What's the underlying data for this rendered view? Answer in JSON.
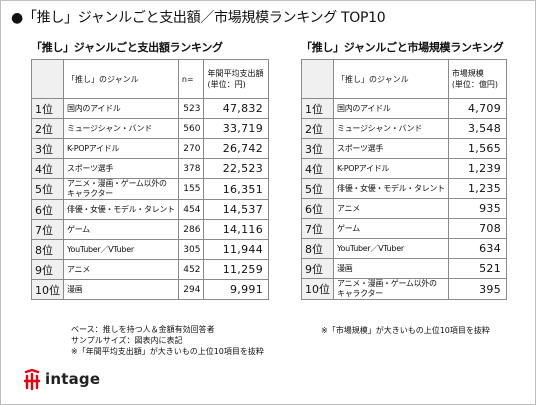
{
  "title": "●「推し」ジャンルごと支出額／市場規模ランキング TOP10",
  "left": {
    "subtitle": "「推し」ジャンルごと支出額ランキング",
    "col_genre": "「推し」のジャンル",
    "col_n": "n=",
    "col_value": "年間平均支出額\n(単位：円)",
    "rows": [
      {
        "rank": "1位",
        "genre": "国内のアイドル",
        "n": "523",
        "value": "47,832"
      },
      {
        "rank": "2位",
        "genre": "ミュージシャン・バンド",
        "n": "560",
        "value": "33,719"
      },
      {
        "rank": "3位",
        "genre": "K-POPアイドル",
        "n": "270",
        "value": "26,742"
      },
      {
        "rank": "4位",
        "genre": "スポーツ選手",
        "n": "378",
        "value": "22,523"
      },
      {
        "rank": "5位",
        "genre": "アニメ・漫画・ゲーム以外の\nキャラクター",
        "n": "155",
        "value": "16,351"
      },
      {
        "rank": "6位",
        "genre": "俳優・女優・モデル・タレント",
        "n": "454",
        "value": "14,537"
      },
      {
        "rank": "7位",
        "genre": "ゲーム",
        "n": "286",
        "value": "14,116"
      },
      {
        "rank": "8位",
        "genre": "YouTuber／VTuber",
        "n": "305",
        "value": "11,944"
      },
      {
        "rank": "9位",
        "genre": "アニメ",
        "n": "452",
        "value": "11,259"
      },
      {
        "rank": "10位",
        "genre": "漫画",
        "n": "294",
        "value": "9,991"
      }
    ],
    "notes": [
      "ベース：推しを持つ人＆金額有効回答者",
      "サンプルサイズ：図表内に表記",
      "※「年間平均支出額」が大きいもの上位10項目を抜粋"
    ]
  },
  "right": {
    "subtitle": "「推し」ジャンルごと市場規模ランキング",
    "col_genre": "「推し」のジャンル",
    "col_value": "市場規模\n(単位：億円)",
    "rows": [
      {
        "rank": "1位",
        "genre": "国内のアイドル",
        "value": "4,709"
      },
      {
        "rank": "2位",
        "genre": "ミュージシャン・バンド",
        "value": "3,548"
      },
      {
        "rank": "3位",
        "genre": "スポーツ選手",
        "value": "1,565"
      },
      {
        "rank": "4位",
        "genre": "K-POPアイドル",
        "value": "1,239"
      },
      {
        "rank": "5位",
        "genre": "俳優・女優・モデル・タレント",
        "value": "1,235"
      },
      {
        "rank": "6位",
        "genre": "アニメ",
        "value": "935"
      },
      {
        "rank": "7位",
        "genre": "ゲーム",
        "value": "708"
      },
      {
        "rank": "8位",
        "genre": "YouTuber／VTuber",
        "value": "634"
      },
      {
        "rank": "9位",
        "genre": "漫画",
        "value": "521"
      },
      {
        "rank": "10位",
        "genre": "アニメ・漫画・ゲーム以外の\nキャラクター",
        "value": "395"
      }
    ],
    "notes": [
      "※「市場規模」が大きいもの上位10項目を抜粋"
    ]
  },
  "logo": {
    "text": "intage",
    "mark_color": "#e60012"
  }
}
